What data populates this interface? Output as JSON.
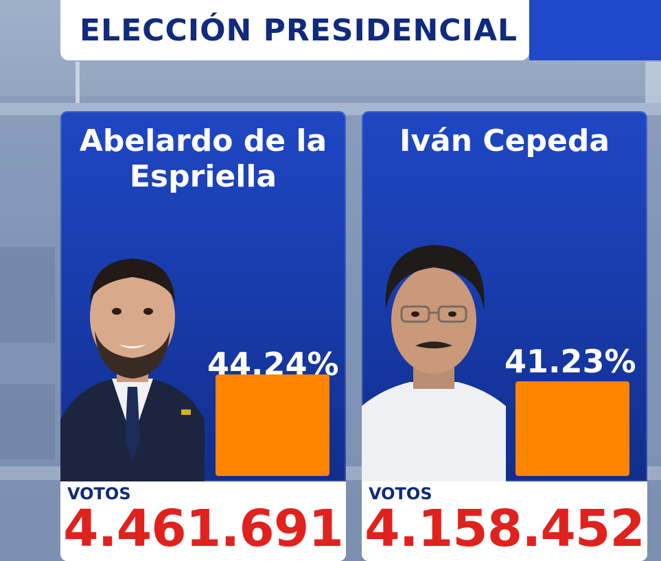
{
  "header": {
    "title": "ELECCIÓN PRESIDENCIAL"
  },
  "colors": {
    "title_text": "#102a7c",
    "card_blue": "#1f47c4",
    "bar_orange": "#ff8400",
    "votes_red": "#e0221e"
  },
  "candidates": [
    {
      "name": "Abelardo de la Espriella",
      "percent_text": "44.24%",
      "percent": 44.24,
      "votes_label": "VOTOS",
      "votes": "4.461.691",
      "photo_icon": "candidate-portrait-suit"
    },
    {
      "name": "Iván Cepeda",
      "percent_text": "41.23%",
      "percent": 41.23,
      "votes_label": "VOTOS",
      "votes": "4.158.452",
      "photo_icon": "candidate-portrait-glasses"
    }
  ]
}
